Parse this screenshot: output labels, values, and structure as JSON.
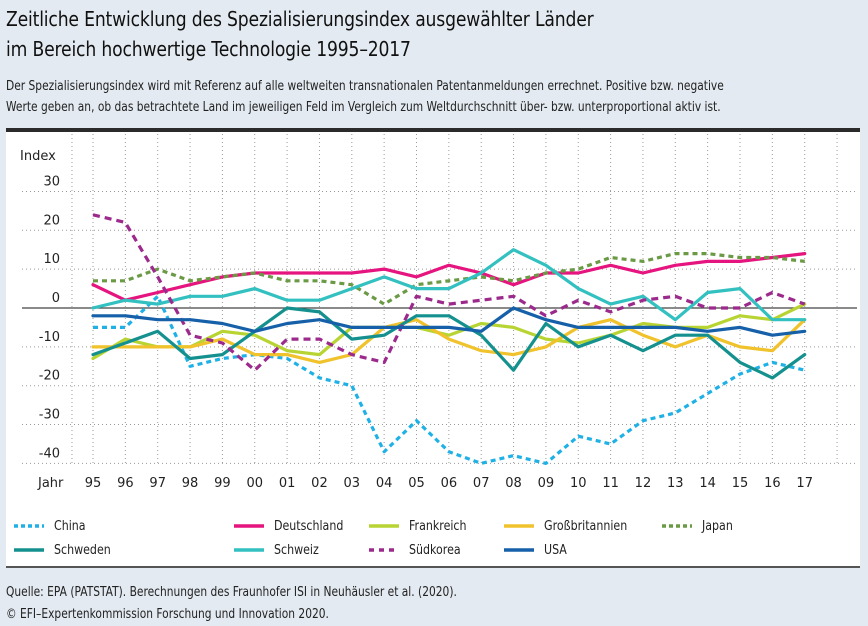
{
  "header": {
    "title_line1": "Zeitliche Entwicklung des Spezialisierungsindex ausgewählter Länder",
    "title_line2": "im Bereich hochwertige Technologie 1995–2017",
    "subtitle_line1": "Der Spezialisierungsindex wird mit Referenz auf alle weltweiten transnationalen Patentanmeldungen errechnet. Positive bzw. negative",
    "subtitle_line2": "Werte geben an, ob das betrachtete Land im jeweiligen Feld im Vergleich zum Weltdurchschnitt über- bzw. unterproportional aktiv ist."
  },
  "footer": {
    "source": "Quelle: EPA (PATSTAT). Berechnungen des Fraunhofer ISI in Neuhäusler et al. (2020).",
    "copyright": "© EFI–Expertenkommission Forschung und Innovation 2020."
  },
  "chart_data": {
    "type": "line",
    "title": "Zeitliche Entwicklung des Spezialisierungsindex ausgewählter Länder im Bereich hochwertige Technologie 1995–2017",
    "ylabel": "Index",
    "xlabel": "Jahr",
    "ylim": [
      -40,
      30
    ],
    "yticks": [
      30,
      20,
      10,
      0,
      -10,
      -20,
      -30,
      -40
    ],
    "grid": true,
    "legend_position": "bottom",
    "categories": [
      "95",
      "96",
      "97",
      "98",
      "99",
      "00",
      "01",
      "02",
      "03",
      "04",
      "05",
      "06",
      "07",
      "08",
      "09",
      "10",
      "11",
      "12",
      "13",
      "14",
      "15",
      "16",
      "17"
    ],
    "series": [
      {
        "name": "China",
        "color": "#1fb1e6",
        "style": "dotted",
        "values": [
          -5,
          -5,
          3,
          -15,
          -13,
          -12,
          -13,
          -18,
          -20,
          -37,
          -29,
          -37,
          -40,
          -38,
          -40,
          -33,
          -35,
          -29,
          -27,
          -22,
          -17,
          -14,
          -16
        ]
      },
      {
        "name": "Deutschland",
        "color": "#e5147f",
        "style": "solid",
        "values": [
          6,
          2,
          4,
          6,
          8,
          9,
          9,
          9,
          9,
          10,
          8,
          11,
          9,
          6,
          9,
          9,
          11,
          9,
          11,
          12,
          12,
          13,
          14
        ]
      },
      {
        "name": "Frankreich",
        "color": "#b8d432",
        "style": "solid",
        "values": [
          -13,
          -8,
          -10,
          -10,
          -6,
          -7,
          -11,
          -12,
          -5,
          -5,
          -5,
          -7,
          -4,
          -5,
          -8,
          -9,
          -7,
          -4,
          -5,
          -5,
          -2,
          -3,
          1
        ]
      },
      {
        "name": "Großbritannien",
        "color": "#f0c22c",
        "style": "solid",
        "values": [
          -10,
          -10,
          -10,
          -10,
          -8,
          -12,
          -12,
          -14,
          -12,
          -5,
          -3,
          -8,
          -11,
          -12,
          -10,
          -5,
          -3,
          -7,
          -10,
          -7,
          -10,
          -11,
          -3
        ]
      },
      {
        "name": "Japan",
        "color": "#6b9a45",
        "style": "dotted",
        "values": [
          7,
          7,
          10,
          7,
          8,
          9,
          7,
          7,
          6,
          1,
          6,
          7,
          8,
          7,
          9,
          10,
          13,
          12,
          14,
          14,
          13,
          13,
          12
        ]
      },
      {
        "name": "Schweden",
        "color": "#14918f",
        "style": "solid",
        "values": [
          -12,
          -9,
          -6,
          -13,
          -12,
          -6,
          0,
          -1,
          -8,
          -7,
          -2,
          -2,
          -7,
          -16,
          -4,
          -10,
          -7,
          -11,
          -7,
          -7,
          -14,
          -18,
          -12
        ]
      },
      {
        "name": "Schweiz",
        "color": "#33c0c0",
        "style": "solid",
        "values": [
          0,
          2,
          1,
          3,
          3,
          5,
          2,
          2,
          5,
          8,
          5,
          5,
          9,
          15,
          11,
          5,
          1,
          3,
          -3,
          4,
          5,
          -3,
          -3
        ]
      },
      {
        "name": "Südkorea",
        "color": "#9c2a8c",
        "style": "dashed",
        "values": [
          24,
          22,
          8,
          -7,
          -9,
          -16,
          -8,
          -8,
          -12,
          -14,
          3,
          1,
          2,
          3,
          -2,
          2,
          -1,
          2,
          3,
          0,
          0,
          4,
          1
        ]
      },
      {
        "name": "USA",
        "color": "#1560a8",
        "style": "solid",
        "values": [
          -2,
          -2,
          -3,
          -3,
          -4,
          -6,
          -4,
          -3,
          -5,
          -5,
          -5,
          -5,
          -6,
          0,
          -3,
          -5,
          -5,
          -5,
          -5,
          -6,
          -5,
          -7,
          -6
        ]
      }
    ]
  }
}
